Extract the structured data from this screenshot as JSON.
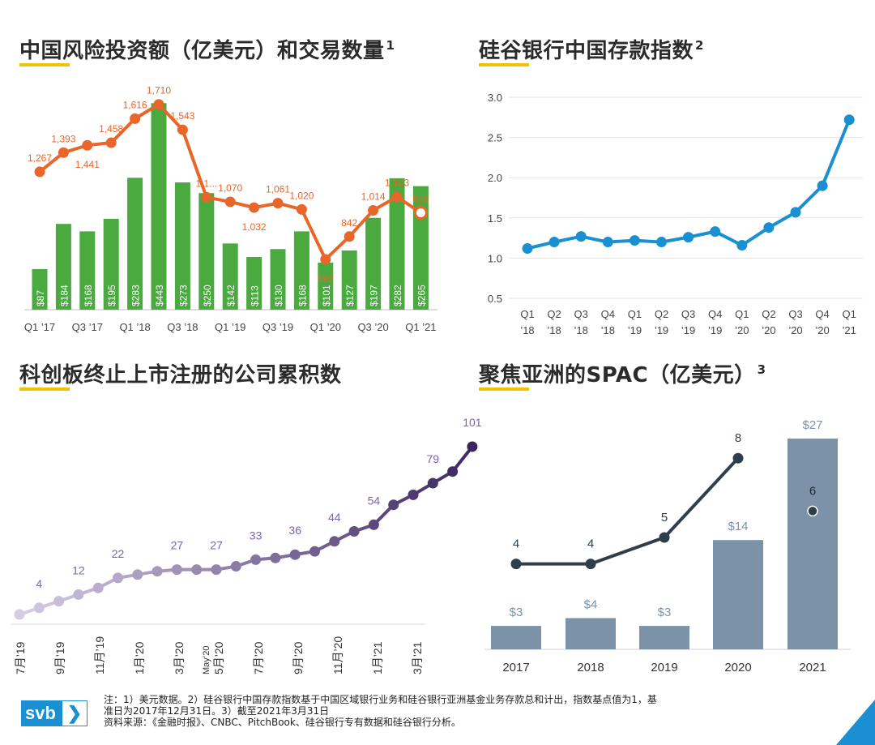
{
  "titles": {
    "vc": "中国风险投资额（亿美元）和交易数量",
    "vc_sup": "1",
    "deposit": "硅谷银行中国存款指数",
    "deposit_sup": "2",
    "star": "科创板终止上市注册的公司累积数",
    "spac": "聚焦亚洲的SPAC（亿美元）",
    "spac_sup": "3"
  },
  "colors": {
    "accent": "#f2c200",
    "bar_green": "#4aaa3f",
    "line_orange": "#e8662a",
    "line_blue": "#1a8fd1",
    "purple_dark": "#3a2560",
    "purple_light": "#d4cce4",
    "spac_bar": "#7b92a8",
    "spac_line": "#2f3e4c",
    "brand": "#1a8fd1"
  },
  "footer": {
    "note_line1": "注：1）美元数据。2）硅谷银行中国存款指数基于中国区域银行业务和硅谷银行亚洲基金业务存款总和计出，指数基点值为1，基",
    "note_line2": "准日为2017年12月31日。3）截至2021年3月31日",
    "source": "资料来源：《金融时报》、CNBC、PitchBook、硅谷银行专有数据和硅谷银行分析。"
  },
  "logo": {
    "text": "svb",
    "arrow": "❯"
  },
  "chart_data": [
    {
      "type": "bar",
      "title": "中国风险投资额（亿美元）和交易数量",
      "categories": [
        "Q1 '17",
        "Q2 '17",
        "Q3 '17",
        "Q4 '17",
        "Q1 '18",
        "Q2 '18",
        "Q3 '18",
        "Q4 '18",
        "Q1 '19",
        "Q2 '19",
        "Q3 '19",
        "Q4 '19",
        "Q1 '20",
        "Q2 '20",
        "Q3 '20",
        "Q4 '20",
        "Q1 '21"
      ],
      "tick_labels": [
        "Q1 ’17",
        "",
        "Q3 ’17",
        "",
        "Q1 ’18",
        "",
        "Q3 ’18",
        "",
        "Q1 ’19",
        "",
        "Q3 ’19",
        "",
        "Q1 ’20",
        "",
        "Q3 ’20",
        "",
        "Q1 ’21"
      ],
      "series": [
        {
          "kind": "bar",
          "values": [
            87,
            184,
            168,
            195,
            283,
            443,
            273,
            250,
            142,
            113,
            130,
            168,
            101,
            127,
            197,
            282,
            265
          ],
          "labels": [
            "$87",
            "$184",
            "$168",
            "$195",
            "$283",
            "$443",
            "$273",
            "$250",
            "$142",
            "$113",
            "$130",
            "$168",
            "$101",
            "$127",
            "$197",
            "$282",
            "$265"
          ]
        },
        {
          "kind": "line",
          "values": [
            1267,
            1393,
            1441,
            1458,
            1616,
            1710,
            1543,
            1100,
            1070,
            1032,
            1061,
            1020,
            692,
            842,
            1014,
            1103,
            998
          ],
          "labels": [
            "1,267",
            "1,393",
            "1,441",
            "1,458",
            "1,616",
            "1,710",
            "1,543",
            "1,1...",
            "1,070",
            "1,032",
            "1,061",
            "1,020",
            "692",
            "842",
            "1,014",
            "1,103",
            "998"
          ]
        }
      ],
      "grid": false
    },
    {
      "type": "line",
      "title": "硅谷银行中国存款指数",
      "categories": [
        "Q1 '18",
        "Q2 '18",
        "Q3 '18",
        "Q4 '18",
        "Q1 '19",
        "Q2 '19",
        "Q3 '19",
        "Q4 '19",
        "Q1 '20",
        "Q2 '20",
        "Q3 '20",
        "Q4 '20",
        "Q1 '21"
      ],
      "tick_top": [
        "Q1",
        "Q2",
        "Q3",
        "Q4",
        "Q1",
        "Q2",
        "Q3",
        "Q4",
        "Q1",
        "Q2",
        "Q3",
        "Q4",
        "Q1"
      ],
      "tick_bottom": [
        "’18",
        "’18",
        "’18",
        "’18",
        "’19",
        "’19",
        "’19",
        "’19",
        "’20",
        "’20",
        "’20",
        "’20",
        "’21"
      ],
      "values": [
        1.12,
        1.2,
        1.27,
        1.2,
        1.22,
        1.2,
        1.26,
        1.33,
        1.16,
        1.38,
        1.57,
        1.9,
        2.72
      ],
      "ylim": [
        0.5,
        3.0
      ],
      "yticks": [
        "0.5",
        "1.0",
        "1.5",
        "2.0",
        "2.5",
        "3.0"
      ],
      "grid": true
    },
    {
      "type": "line",
      "title": "科创板终止上市注册的公司累积数",
      "values": [
        0,
        4,
        8,
        12,
        16,
        22,
        24,
        26,
        27,
        27,
        27,
        29,
        33,
        34,
        36,
        38,
        44,
        50,
        54,
        66,
        72,
        79,
        86,
        101
      ],
      "value_labels": {
        "1": "4",
        "3": "12",
        "5": "22",
        "8": "27",
        "10": "27",
        "12": "33",
        "14": "36",
        "16": "44",
        "18": "54",
        "21": "79",
        "23": "101"
      },
      "tick_labels": [
        "7月’19",
        "9月’19",
        "11月’19",
        "1月’20",
        "3月’20",
        "May’20",
        "5月’20",
        "7月’20",
        "9月’20",
        "11月’20",
        "1月’21",
        "3月’21"
      ],
      "grid": false
    },
    {
      "type": "bar",
      "title": "聚焦亚洲的SPAC（亿美元）",
      "categories": [
        "2017",
        "2018",
        "2019",
        "2020",
        "2021"
      ],
      "series": [
        {
          "kind": "bar",
          "values": [
            3,
            4,
            3,
            14,
            27
          ],
          "labels": [
            "$3",
            "$4",
            "$3",
            "$14",
            "$27"
          ]
        },
        {
          "kind": "line",
          "values": [
            4,
            4,
            5,
            8,
            6
          ],
          "labels": [
            "4",
            "4",
            "5",
            "8",
            "6"
          ]
        }
      ],
      "grid": false
    }
  ]
}
